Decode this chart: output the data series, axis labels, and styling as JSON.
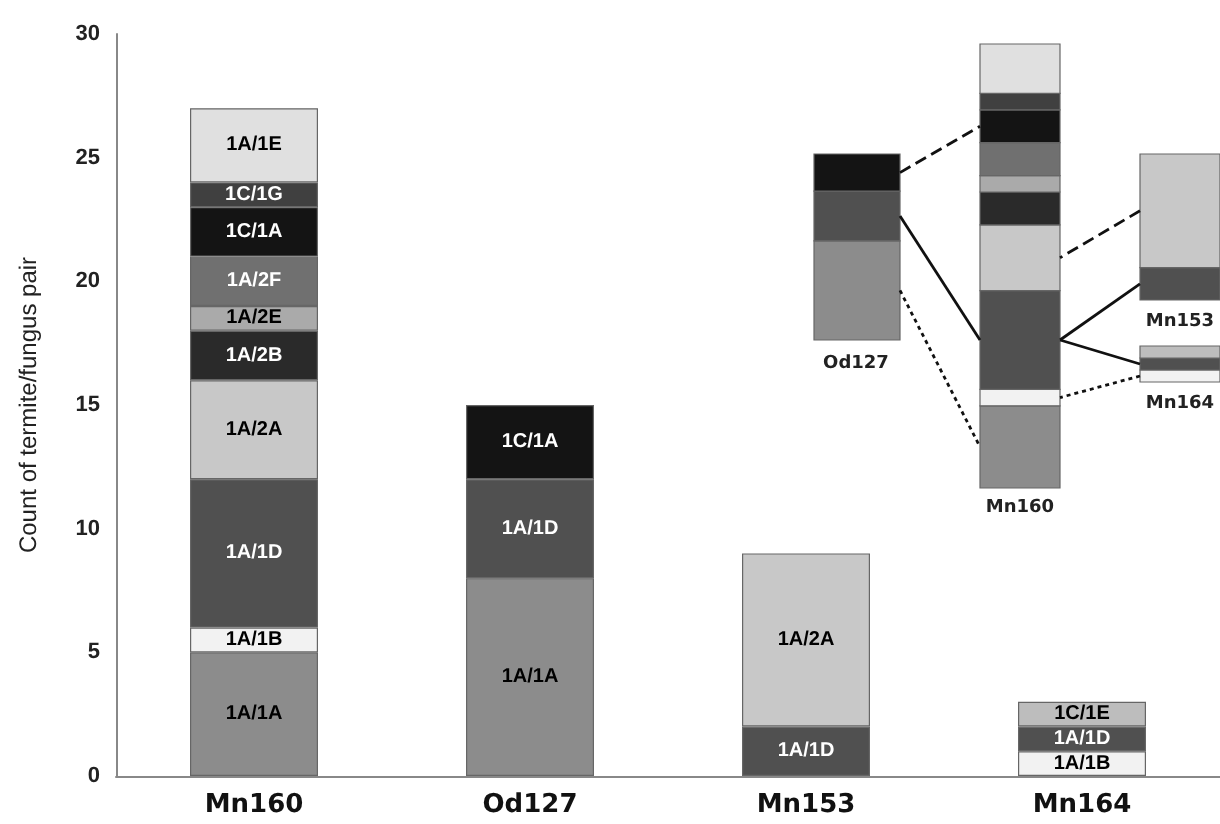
{
  "chart_data": {
    "type": "bar",
    "stacked": true,
    "ylabel": "Count of termite/fungus pair",
    "categories": [
      "Mn160",
      "Od127",
      "Mn153",
      "Mn164"
    ],
    "series": [
      {
        "name": "1A/1A",
        "color": "#8c8c8c",
        "values": [
          5,
          8,
          null,
          null
        ]
      },
      {
        "name": "1A/1B",
        "color": "#f2f2f2",
        "values": [
          1,
          null,
          null,
          1
        ]
      },
      {
        "name": "1A/1D",
        "color": "#505050",
        "values": [
          6,
          4,
          2,
          1
        ]
      },
      {
        "name": "1A/2A",
        "color": "#c8c8c8",
        "values": [
          4,
          null,
          7,
          null
        ]
      },
      {
        "name": "1A/2B",
        "color": "#2a2a2a",
        "values": [
          2,
          null,
          null,
          null
        ]
      },
      {
        "name": "1A/2E",
        "color": "#aaaaaa",
        "values": [
          1,
          null,
          null,
          null
        ]
      },
      {
        "name": "1A/2F",
        "color": "#707070",
        "values": [
          2,
          null,
          null,
          null
        ]
      },
      {
        "name": "1C/1A",
        "color": "#141414",
        "values": [
          2,
          3,
          null,
          null
        ]
      },
      {
        "name": "1C/1G",
        "color": "#404040",
        "values": [
          1,
          null,
          null,
          null
        ]
      },
      {
        "name": "1A/1E",
        "color": "#e0e0e0",
        "values": [
          3,
          null,
          null,
          null
        ]
      },
      {
        "name": "1C/1E",
        "color": "#bdbdbd",
        "values": [
          null,
          null,
          null,
          1
        ]
      }
    ],
    "ylim": [
      0,
      30
    ],
    "yticks": [
      0,
      5,
      10,
      15,
      20,
      25,
      30
    ],
    "grid": false,
    "legend": false
  }
}
